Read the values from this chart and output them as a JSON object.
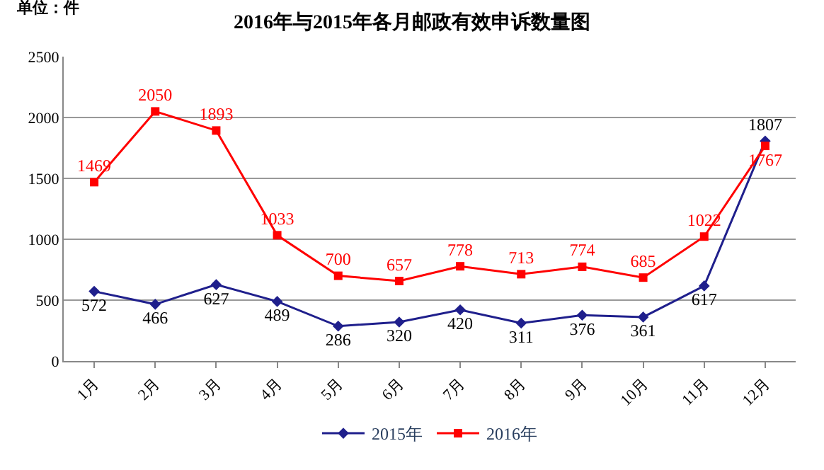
{
  "chart_data": {
    "type": "line",
    "title": "2016年与2015年各月邮政有效申诉数量图",
    "annotations": [
      "单位：件"
    ],
    "categories": [
      "1月",
      "2月",
      "3月",
      "4月",
      "5月",
      "6月",
      "7月",
      "8月",
      "9月",
      "10月",
      "11月",
      "12月"
    ],
    "series": [
      {
        "name": "2015年",
        "color": "#1f1f8c",
        "marker": "diamond",
        "values": [
          572,
          466,
          627,
          489,
          286,
          320,
          420,
          311,
          376,
          361,
          617,
          1807
        ]
      },
      {
        "name": "2016年",
        "color": "#ff0000",
        "marker": "square",
        "values": [
          1469,
          2050,
          1893,
          1033,
          700,
          657,
          778,
          713,
          774,
          685,
          1022,
          1767
        ]
      }
    ],
    "ylim": [
      0,
      2500
    ],
    "yticks": [
      0,
      500,
      1000,
      1500,
      2000,
      2500
    ],
    "grid": "y",
    "legend": "bottom",
    "data_labels": true,
    "line_style": "solid"
  }
}
